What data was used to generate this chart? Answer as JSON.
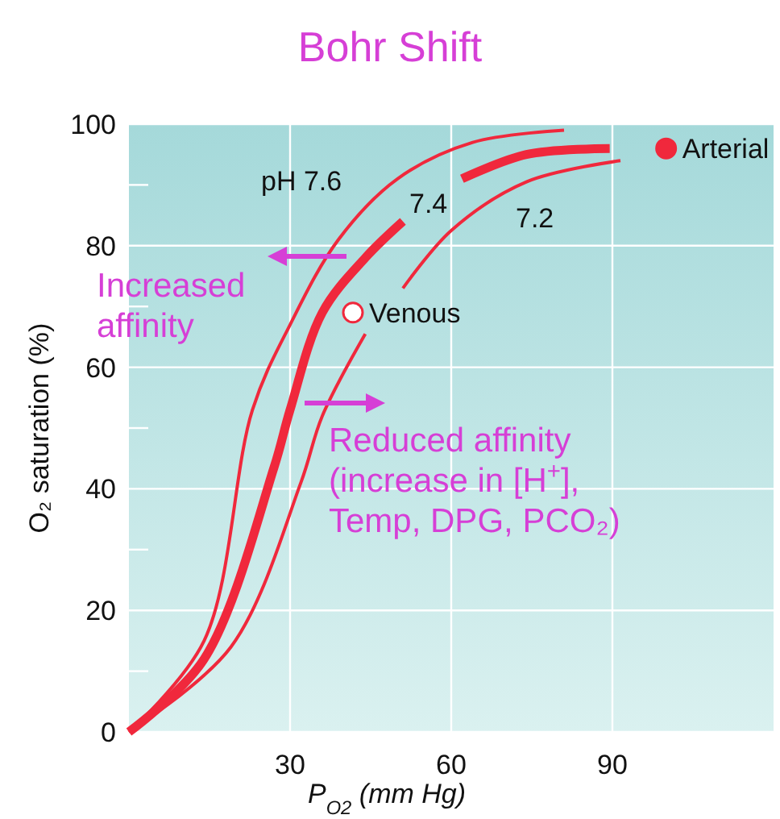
{
  "chart_data": {
    "type": "line",
    "title": "Bohr Shift",
    "xlabel": "P$_{O2}$ (mm Hg)",
    "ylabel": "O₂ saturation (%)",
    "xlim": [
      0,
      120
    ],
    "xticks": [
      30,
      60,
      90
    ],
    "ylim": [
      0,
      100
    ],
    "yticks": [
      0,
      {
        "value": 10,
        "label": null
      },
      20,
      {
        "value": 30,
        "label": null
      },
      40,
      {
        "value": 50,
        "label": null
      },
      60,
      {
        "value": 70,
        "label": null
      },
      80,
      {
        "value": 90,
        "label": null
      },
      100
    ],
    "grid": true,
    "marker": "none",
    "series": [
      {
        "name": "pH 7.6",
        "color": "#f0283c",
        "x": [
          0,
          14,
          23,
          30,
          39,
          50,
          64,
          81
        ],
        "values": [
          0,
          15,
          53,
          67,
          81,
          91,
          97,
          99
        ]
      },
      {
        "name": "7.4",
        "color": "#f0283c",
        "x": [
          0,
          14,
          27,
          30,
          36,
          44,
          51,
          56,
          62,
          74,
          89.5
        ],
        "values": [
          0,
          12,
          43.5,
          53,
          69,
          78,
          84,
          null,
          91,
          95,
          96
        ]
      },
      {
        "name": "7.2",
        "color": "#f0283c",
        "x": [
          0,
          19,
          32,
          36,
          44,
          47,
          51,
          60,
          74,
          91.5
        ],
        "values": [
          0,
          14,
          41,
          52,
          65.5,
          null,
          73,
          82.5,
          90.5,
          94
        ]
      },
      {
        "name": "Arterial",
        "type": "scatter",
        "marker": "circle",
        "color": "#f0283c",
        "x": [
          100
        ],
        "values": [
          96
        ]
      },
      {
        "name": "Venous",
        "type": "scatter",
        "marker": "circle",
        "color": "#ffffff",
        "x": [
          41.7
        ],
        "values": [
          69
        ]
      }
    ],
    "annotations": [
      "Increased affinity",
      "Reduced affinity (increase in [H$^{+}$], Temp, DPG, PCO₂)"
    ]
  }
}
